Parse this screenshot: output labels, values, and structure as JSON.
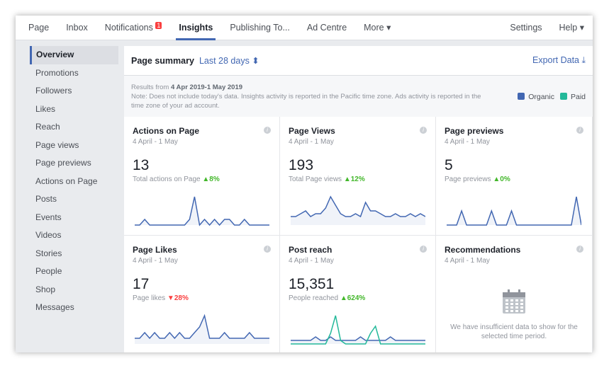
{
  "nav": {
    "items": [
      "Page",
      "Inbox",
      "Notifications",
      "Insights",
      "Publishing To...",
      "Ad Centre",
      "More ▾"
    ],
    "notifications_badge": "1",
    "active": "Insights",
    "right": [
      "Settings",
      "Help ▾"
    ]
  },
  "sidebar": {
    "items": [
      "Overview",
      "Promotions",
      "Followers",
      "Likes",
      "Reach",
      "Page views",
      "Page previews",
      "Actions on Page",
      "Posts",
      "Events",
      "Videos",
      "Stories",
      "People",
      "Shop",
      "Messages"
    ],
    "active": "Overview"
  },
  "summary": {
    "title": "Page summary",
    "range": "Last 28 days ⬍",
    "export": "Export Data ⤓"
  },
  "note": {
    "results_prefix": "Results from ",
    "results_range": "4 Apr 2019-1 May 2019",
    "text": "Note: Does not include today's data. Insights activity is reported in the Pacific time zone. Ads activity is reported in the time zone of your ad account."
  },
  "legend": [
    {
      "label": "Organic",
      "color": "#4267b2"
    },
    {
      "label": "Paid",
      "color": "#23b99a"
    }
  ],
  "cards": [
    {
      "title": "Actions on Page",
      "date": "4 April - 1 May",
      "value": "13",
      "sub": "Total actions on Page",
      "change": "▲8%",
      "dir": "up",
      "organic": [
        0,
        0,
        1,
        0,
        0,
        0,
        0,
        0,
        0,
        0,
        0,
        1,
        5,
        0,
        1,
        0,
        1,
        0,
        1,
        1,
        0,
        0,
        1,
        0,
        0,
        0,
        0,
        0
      ],
      "paid": []
    },
    {
      "title": "Page Views",
      "date": "4 April - 1 May",
      "value": "193",
      "sub": "Total Page views",
      "change": "▲12%",
      "dir": "up",
      "organic": [
        3,
        3,
        4,
        5,
        3,
        4,
        4,
        6,
        10,
        7,
        4,
        3,
        3,
        4,
        3,
        8,
        5,
        5,
        4,
        3,
        3,
        4,
        3,
        3,
        4,
        3,
        4,
        3
      ],
      "paid": []
    },
    {
      "title": "Page previews",
      "date": "4 April - 1 May",
      "value": "5",
      "sub": "Page previews",
      "change": "▲0%",
      "dir": "up",
      "organic": [
        0,
        0,
        0,
        1,
        0,
        0,
        0,
        0,
        0,
        1,
        0,
        0,
        0,
        1,
        0,
        0,
        0,
        0,
        0,
        0,
        0,
        0,
        0,
        0,
        0,
        0,
        2,
        0
      ],
      "paid": []
    },
    {
      "title": "Page Likes",
      "date": "4 April - 1 May",
      "value": "17",
      "sub": "Page likes",
      "change": "▼28%",
      "dir": "down",
      "organic": [
        1,
        1,
        2,
        1,
        2,
        1,
        1,
        2,
        1,
        2,
        1,
        1,
        2,
        3,
        5,
        1,
        1,
        1,
        2,
        1,
        1,
        1,
        1,
        2,
        1,
        1,
        1,
        1
      ],
      "paid": []
    },
    {
      "title": "Post reach",
      "date": "4 April - 1 May",
      "value": "15,351",
      "sub": "People reached",
      "change": "▲624%",
      "dir": "up",
      "organic": [
        1,
        1,
        1,
        1,
        1,
        2,
        1,
        1,
        2,
        1,
        1,
        1,
        1,
        1,
        2,
        1,
        1,
        1,
        1,
        1,
        2,
        1,
        1,
        1,
        1,
        1,
        1,
        1
      ],
      "paid": [
        0,
        0,
        0,
        0,
        0,
        0,
        0,
        0,
        3,
        8,
        1,
        0,
        0,
        0,
        0,
        0,
        3,
        5,
        0,
        0,
        0,
        0,
        0,
        0,
        0,
        0,
        0,
        0
      ]
    },
    {
      "title": "Recommendations",
      "date": "4 April - 1 May",
      "empty": "We have insufficient data to show for the selected time period."
    }
  ]
}
